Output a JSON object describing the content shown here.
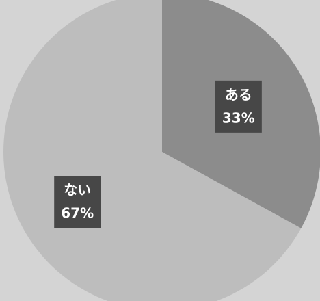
{
  "chart_data": {
    "type": "pie",
    "categories": [
      "ある",
      "ない"
    ],
    "values": [
      33,
      67
    ],
    "value_labels": [
      "33%",
      "67%"
    ],
    "colors": [
      "#8c8c8c",
      "#bdbdbd"
    ]
  }
}
